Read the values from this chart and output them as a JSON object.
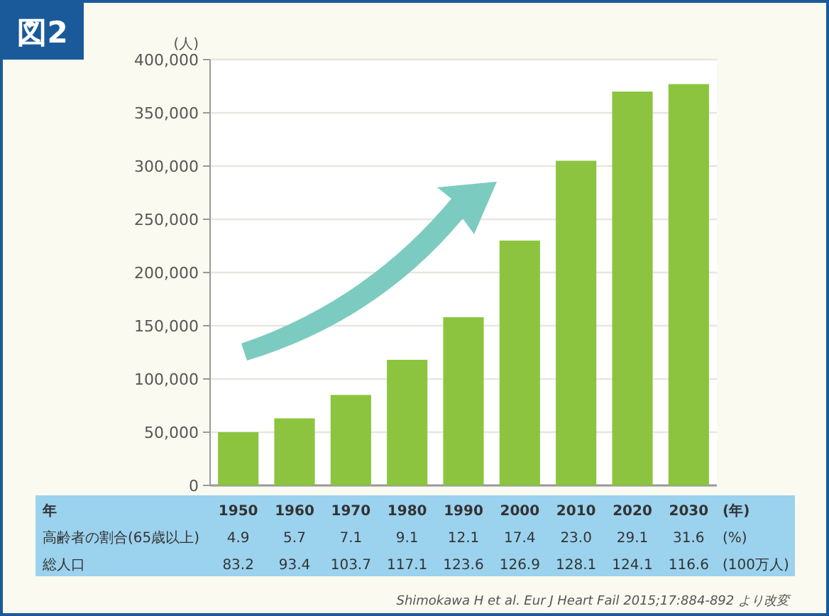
{
  "chart_data": {
    "type": "bar",
    "title": "図2",
    "ylabel": "(人)",
    "categories": [
      "1950",
      "1960",
      "1970",
      "1980",
      "1990",
      "2000",
      "2010",
      "2020",
      "2030"
    ],
    "values": [
      50000,
      63000,
      85000,
      118000,
      158000,
      230000,
      305000,
      370000,
      377000
    ],
    "color": "#8cc43f",
    "ylim": [
      0,
      400000
    ],
    "yticks": [
      {
        "value": 0,
        "label": "0"
      },
      {
        "value": 50000,
        "label": "50,000"
      },
      {
        "value": 100000,
        "label": "100,000"
      },
      {
        "value": 150000,
        "label": "150,000"
      },
      {
        "value": 200000,
        "label": "200,000"
      },
      {
        "value": 250000,
        "label": "250,000"
      },
      {
        "value": 300000,
        "label": "300,000"
      },
      {
        "value": 350000,
        "label": "350,000"
      },
      {
        "value": 400000,
        "label": "400,000"
      }
    ],
    "grid": "y",
    "annotations": [
      "年",
      "(年)",
      "高齢者の割合(65歳以上)",
      "4.9",
      "5.7",
      "7.1",
      "9.1",
      "12.1",
      "17.4",
      "23.0",
      "29.1",
      "31.6",
      "(%)",
      "総人口",
      "83.2",
      "93.4",
      "103.7",
      "117.1",
      "123.6",
      "126.9",
      "128.1",
      "124.1",
      "116.6",
      "(100万人)",
      "Shimokawa H et al. Eur J Heart Fail 2015;17:884-892 より改変"
    ]
  }
}
